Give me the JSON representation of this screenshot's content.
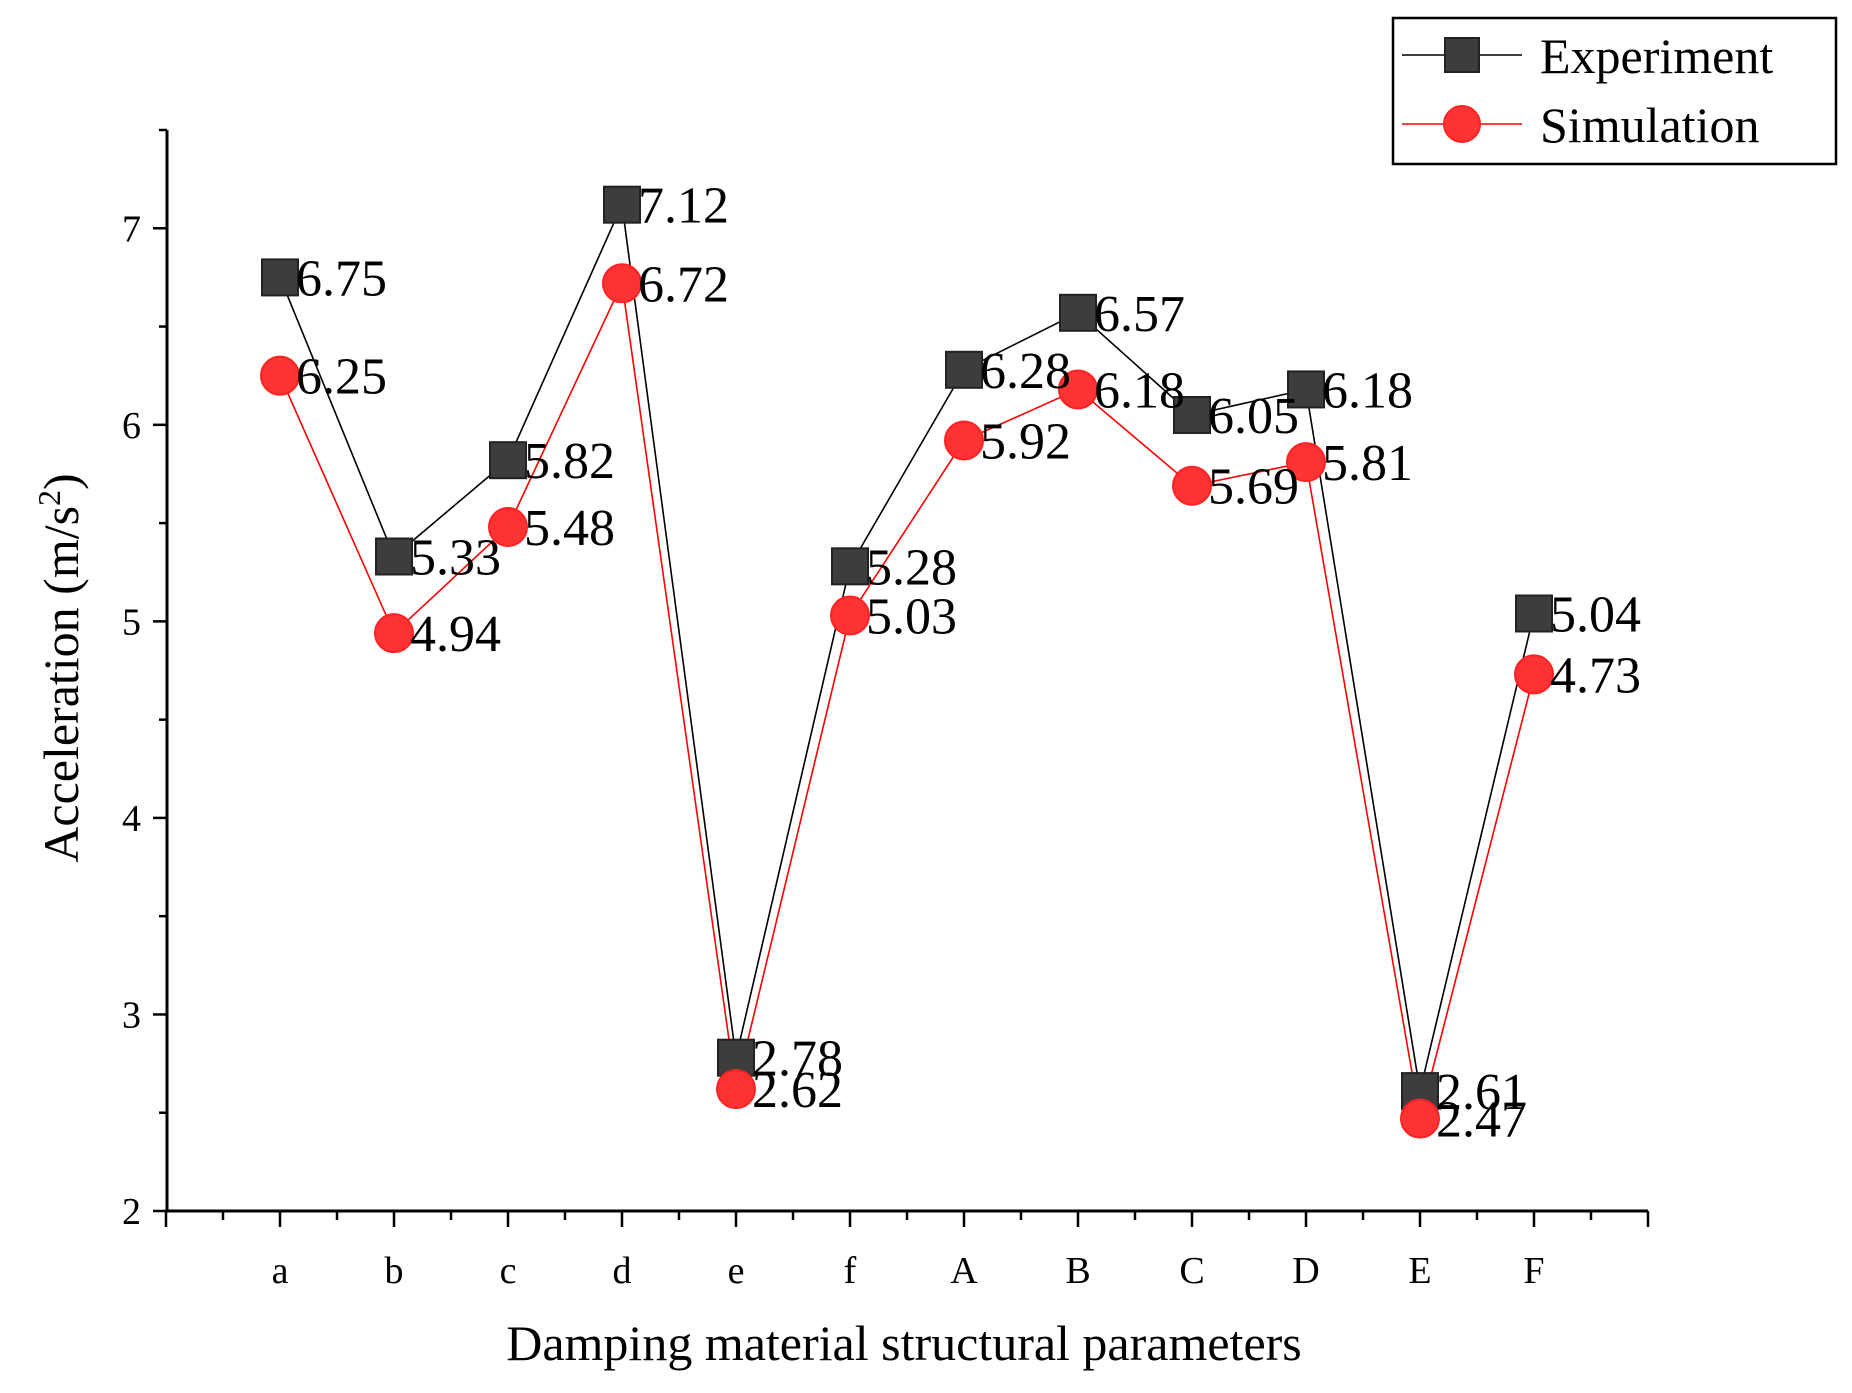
{
  "chart_data": {
    "type": "line",
    "title": "",
    "xlabel": "Damping material structural parameters",
    "ylabel": "Acceleration (m/s",
    "ylabel_sup": "2",
    "ylabel_end": ")",
    "categories": [
      "a",
      "b",
      "c",
      "d",
      "e",
      "f",
      "A",
      "B",
      "C",
      "D",
      "E",
      "F"
    ],
    "ylim": [
      2,
      7.5
    ],
    "yticks": [
      2,
      3,
      4,
      5,
      6,
      7
    ],
    "grid": false,
    "legend_position": "top-right",
    "series": [
      {
        "name": "Experiment",
        "color": "#3d3d3d",
        "line_color": "#000000",
        "marker": "square",
        "values": [
          6.75,
          5.33,
          5.82,
          7.12,
          2.78,
          5.28,
          6.28,
          6.57,
          6.05,
          6.18,
          2.61,
          5.04
        ],
        "labels": [
          "6.75",
          "5.33",
          "5.82",
          "7.12",
          "2.78",
          "5.28",
          "6.28",
          "6.57",
          "6.05",
          "6.18",
          "2.61",
          "5.04"
        ]
      },
      {
        "name": "Simulation",
        "color": "#ff3333",
        "line_color": "#ff0000",
        "marker": "circle",
        "values": [
          6.25,
          4.94,
          5.48,
          6.72,
          2.62,
          5.03,
          5.92,
          6.18,
          5.69,
          5.81,
          2.47,
          4.73
        ],
        "labels": [
          "6.25",
          "4.94",
          "5.48",
          "6.72",
          "2.62",
          "5.03",
          "5.92",
          "6.18",
          "5.69",
          "5.81",
          "2.47",
          "4.73"
        ]
      }
    ]
  }
}
